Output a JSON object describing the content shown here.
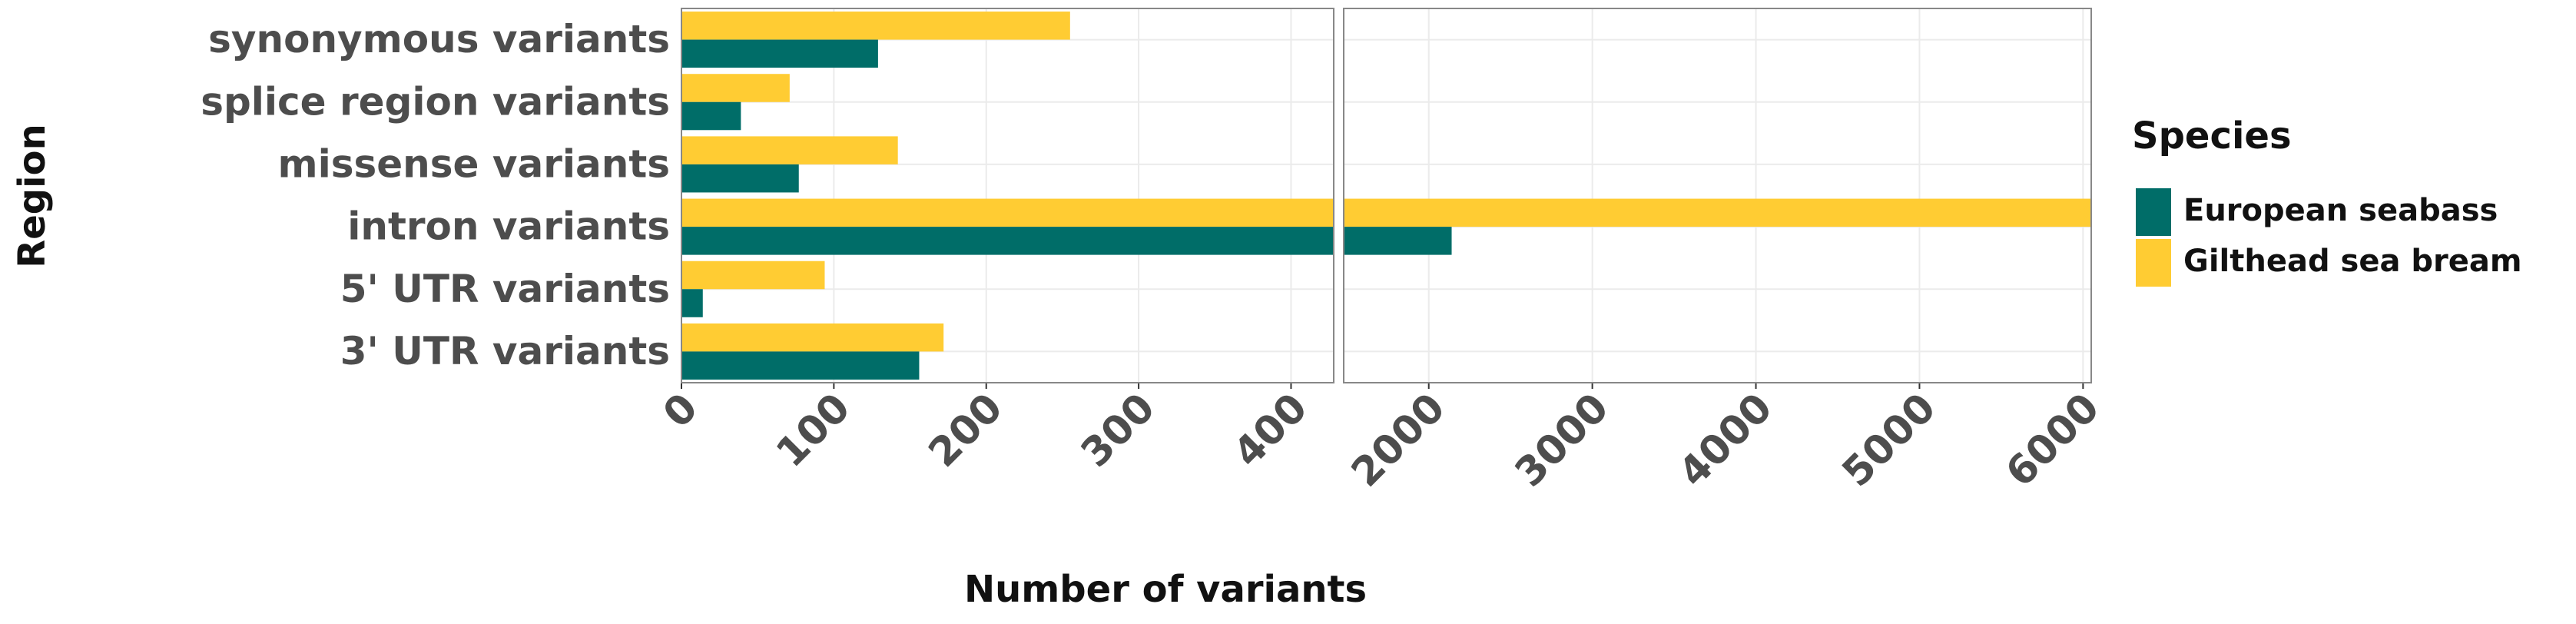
{
  "chart_data": {
    "type": "bar",
    "orientation": "horizontal",
    "x_label": "Number of variants",
    "y_label": "Region",
    "categories": [
      "synonymous variants",
      "splice region variants",
      "missense variants",
      "intron variants",
      "5' UTR variants",
      "3' UTR variants"
    ],
    "series": [
      {
        "name": "Gilthead sea bream",
        "color": "#ffcc33",
        "values": [
          255,
          71,
          142,
          6050,
          94,
          172
        ]
      },
      {
        "name": "European seabass",
        "color": "#006d68",
        "values": [
          129,
          39,
          77,
          2140,
          14,
          156
        ]
      }
    ],
    "legend_title": "Species",
    "legend_order": [
      "European seabass",
      "Gilthead sea bream"
    ],
    "panels": [
      {
        "xlim": [
          0,
          428
        ],
        "xticks": [
          0,
          100,
          200,
          300,
          400
        ]
      },
      {
        "xlim": [
          1480,
          6050
        ],
        "xticks": [
          2000,
          3000,
          4000,
          5000,
          6000
        ]
      }
    ],
    "grid": true,
    "legend_position": "right"
  }
}
